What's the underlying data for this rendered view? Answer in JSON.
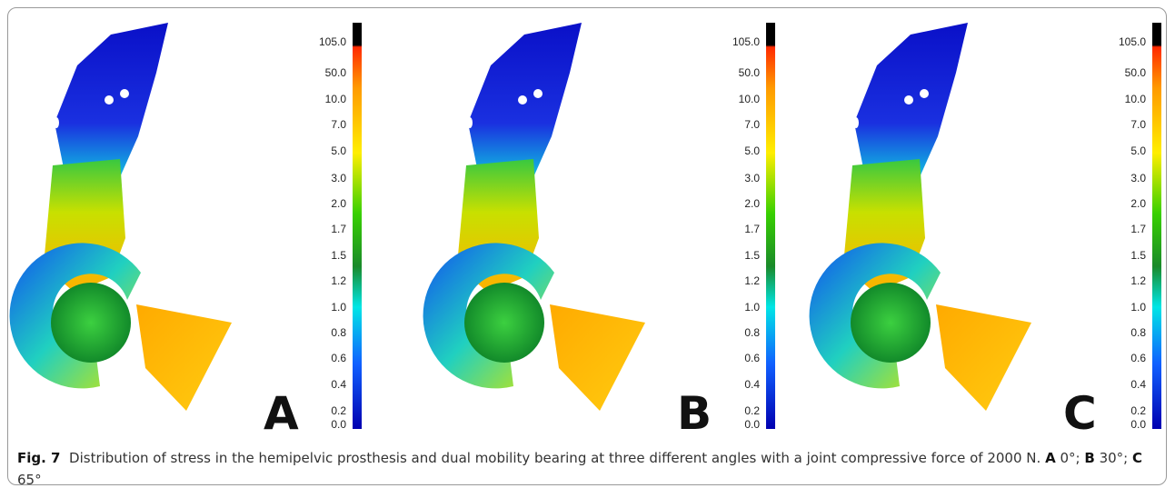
{
  "panels": [
    {
      "letter": "A"
    },
    {
      "letter": "B"
    },
    {
      "letter": "C"
    }
  ],
  "colorbar_labels": [
    "105.0",
    "50.0",
    "10.0",
    "7.0",
    "5.0",
    "3.0",
    "2.0",
    "1.7",
    "1.5",
    "1.2",
    "1.0",
    "0.8",
    "0.6",
    "0.4",
    "0.2",
    "0.0"
  ],
  "caption": {
    "label": "Fig. 7",
    "text": "Distribution of stress in the hemipelvic prosthesis and dual mobility bearing at three different angles with a joint compressive force of 2000 N.",
    "parts": [
      {
        "letter": "A",
        "text": "0°;"
      },
      {
        "letter": "B",
        "text": "30°;"
      },
      {
        "letter": "C",
        "text": "65°"
      }
    ]
  }
}
